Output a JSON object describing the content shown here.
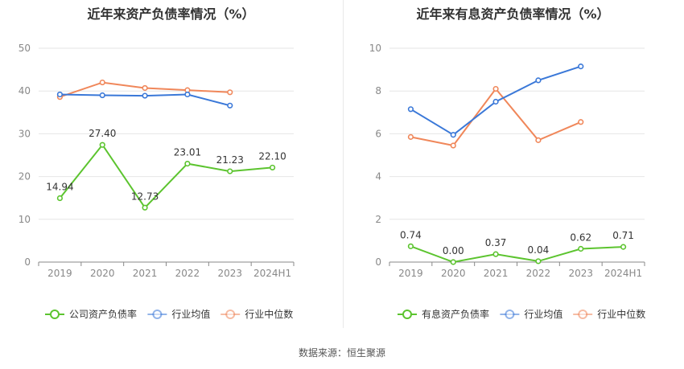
{
  "chart_data": [
    {
      "type": "line",
      "title": "近年来资产负债率情况（%）",
      "categories": [
        "2019",
        "2020",
        "2021",
        "2022",
        "2023",
        "2024H1"
      ],
      "ylim": [
        0,
        50
      ],
      "yticks": [
        "0",
        "10",
        "20",
        "30",
        "40",
        "50"
      ],
      "series": [
        {
          "name": "公司资产负债率",
          "color": "#5cc42f",
          "values": [
            14.94,
            27.4,
            12.73,
            23.01,
            21.23,
            22.1
          ],
          "labels": [
            "14.94",
            "27.40",
            "12.73",
            "23.01",
            "21.23",
            "22.10"
          ]
        },
        {
          "name": "行业均值",
          "color": "#3a78d8",
          "values": [
            39.2,
            39.0,
            38.9,
            39.2,
            36.6,
            null
          ]
        },
        {
          "name": "行业中位数",
          "color": "#f0875a",
          "values": [
            38.6,
            42.0,
            40.7,
            40.2,
            39.7,
            null
          ]
        }
      ],
      "grid": true,
      "legend": "bottom"
    },
    {
      "type": "line",
      "title": "近年来有息资产负债率情况（%）",
      "categories": [
        "2019",
        "2020",
        "2021",
        "2022",
        "2023",
        "2024H1"
      ],
      "ylim": [
        0,
        10
      ],
      "yticks": [
        "0",
        "2",
        "4",
        "6",
        "8",
        "10"
      ],
      "series": [
        {
          "name": "有息资产负债率",
          "color": "#5cc42f",
          "values": [
            0.74,
            0.0,
            0.37,
            0.04,
            0.62,
            0.71
          ],
          "labels": [
            "0.74",
            "0.00",
            "0.37",
            "0.04",
            "0.62",
            "0.71"
          ]
        },
        {
          "name": "行业均值",
          "color": "#3a78d8",
          "values": [
            7.15,
            5.95,
            7.5,
            8.5,
            9.15,
            null
          ]
        },
        {
          "name": "行业中位数",
          "color": "#f0875a",
          "values": [
            5.85,
            5.45,
            8.1,
            5.7,
            6.55,
            null
          ]
        }
      ],
      "grid": true,
      "legend": "bottom"
    }
  ],
  "source": {
    "label": "数据来源：",
    "value": "恒生聚源"
  }
}
